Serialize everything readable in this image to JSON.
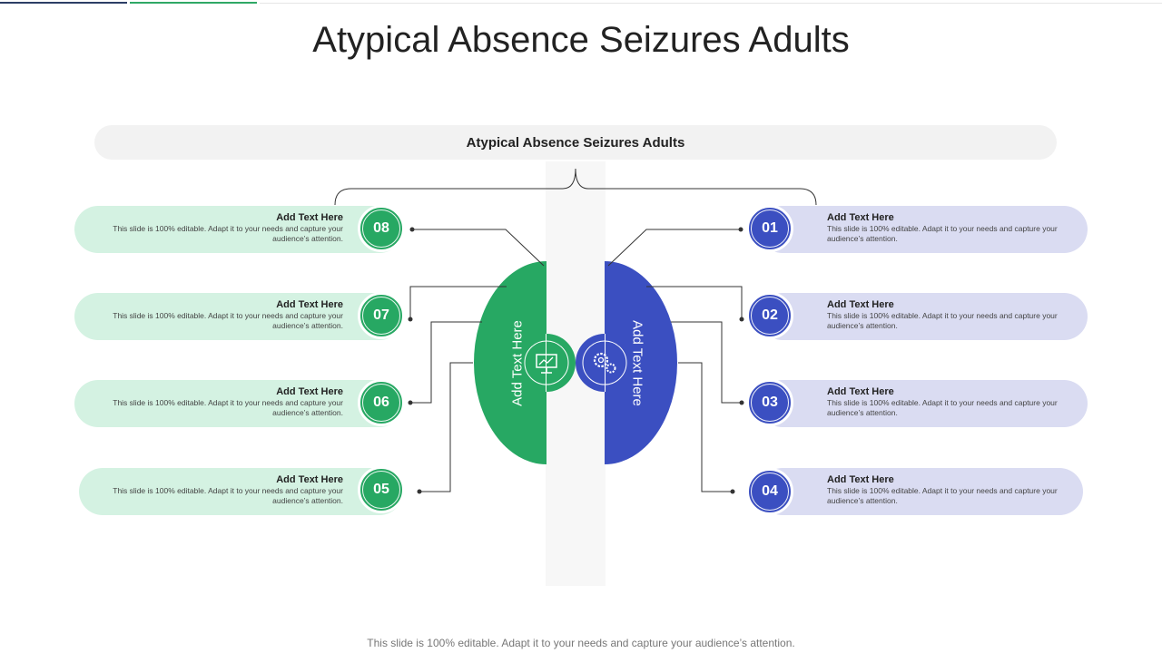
{
  "title": "Atypical Absence Seizures Adults",
  "header": "Atypical Absence Seizures Adults",
  "footer": "This slide is 100% editable. Adapt it to your needs and capture your audience’s attention.",
  "colors": {
    "green": "#27a863",
    "blue": "#3b4fc1",
    "green_light": "#d4f2e2",
    "blue_light": "#dadcf2"
  },
  "center": {
    "left_label": "Add Text Here",
    "right_label": "Add Text Here",
    "left_icon": "presentation-chart-icon",
    "right_icon": "gear-cogs-icon"
  },
  "items": [
    {
      "num": "01",
      "heading": "Add Text Here",
      "body": "This slide is 100% editable. Adapt it to your needs and capture your audience’s attention."
    },
    {
      "num": "02",
      "heading": "Add Text Here",
      "body": "This slide is 100% editable. Adapt it to your needs and capture your audience’s attention."
    },
    {
      "num": "03",
      "heading": "Add Text Here",
      "body": "This slide is 100% editable. Adapt it to your needs and capture your audience’s attention."
    },
    {
      "num": "04",
      "heading": "Add Text Here",
      "body": "This slide is 100% editable. Adapt it to your needs and capture your audience’s attention."
    },
    {
      "num": "05",
      "heading": "Add Text Here",
      "body": "This slide is 100% editable. Adapt it to your needs and capture your audience’s attention."
    },
    {
      "num": "06",
      "heading": "Add Text Here",
      "body": "This slide is 100% editable. Adapt it to your needs and capture your audience’s attention."
    },
    {
      "num": "07",
      "heading": "Add Text Here",
      "body": "This slide is 100% editable. Adapt it to your needs and capture your audience’s attention."
    },
    {
      "num": "08",
      "heading": "Add Text Here",
      "body": "This slide is 100% editable. Adapt it to your needs and capture your audience’s attention."
    }
  ]
}
